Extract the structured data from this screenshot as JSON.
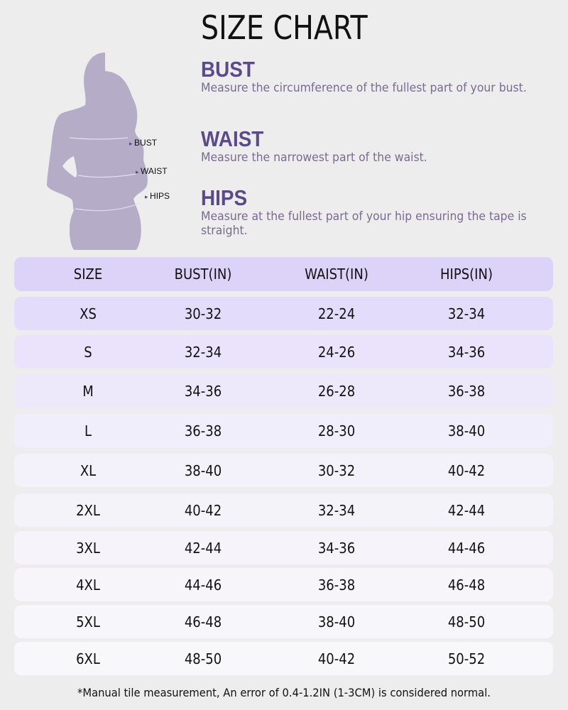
{
  "title": "SIZE CHART",
  "figure_labels": [
    "BUST",
    "WAIST",
    "HIPS"
  ],
  "measurements": [
    {
      "name": "BUST",
      "desc": "Measure the circumference of the fullest part of your bust."
    },
    {
      "name": "WAIST",
      "desc": "Measure the narrowest part of the waist."
    },
    {
      "name": "HIPS",
      "desc": "Measure at the fullest part of your hip ensuring the tape is straight."
    }
  ],
  "table": {
    "headers": [
      "SIZE",
      "BUST(IN)",
      "WAIST(IN)",
      "HIPS(IN)"
    ],
    "rows": [
      [
        "XS",
        "30-32",
        "22-24",
        "32-34"
      ],
      [
        "S",
        "32-34",
        "24-26",
        "34-36"
      ],
      [
        "M",
        "34-36",
        "26-28",
        "36-38"
      ],
      [
        "L",
        "36-38",
        "28-30",
        "38-40"
      ],
      [
        "XL",
        "38-40",
        "30-32",
        "40-42"
      ],
      [
        "2XL",
        "40-42",
        "32-34",
        "42-44"
      ],
      [
        "3XL",
        "42-44",
        "34-36",
        "44-46"
      ],
      [
        "4XL",
        "44-46",
        "36-38",
        "46-48"
      ],
      [
        "5XL",
        "46-48",
        "38-40",
        "48-50"
      ],
      [
        "6XL",
        "48-50",
        "40-42",
        "50-52"
      ]
    ]
  },
  "footnote": "*Manual tile measurement, An error of 0.4-1.2IN (1-3CM) is considered normal.",
  "colors": {
    "accent": "#5b4a8a",
    "header_bg": "#dcd3f8",
    "silhouette": "#b5adc8"
  }
}
